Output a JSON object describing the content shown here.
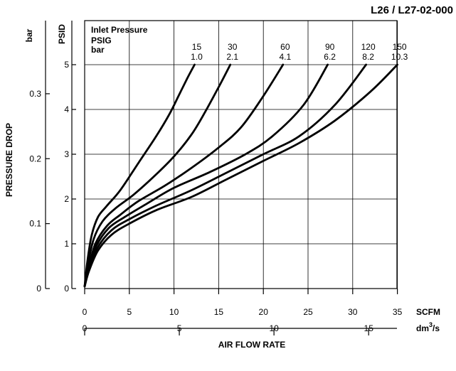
{
  "chart_data": {
    "type": "line",
    "title": "L26 / L27-02-000",
    "ylabel": "PRESSURE DROP",
    "xlabel": "AIR FLOW RATE",
    "y_units": {
      "psid": "PSID",
      "bar": "bar"
    },
    "x_units": {
      "scfm": "SCFM",
      "dm3s_base": "dm",
      "dm3s_exp": "3",
      "dm3s_tail": "/s"
    },
    "psid_ticks": [
      "0",
      "1",
      "2",
      "3",
      "4",
      "5"
    ],
    "bar_ticks": [
      "0",
      "0.1",
      "0.2",
      "0.3"
    ],
    "scfm_ticks": [
      "0",
      "5",
      "10",
      "15",
      "20",
      "25",
      "30",
      "35"
    ],
    "dm3s_ticks": [
      "0",
      "5",
      "10",
      "15"
    ],
    "xlim": [
      0,
      38
    ],
    "ylim": [
      0,
      5.3
    ],
    "grid": true,
    "legend": {
      "header": "Inlet Pressure",
      "row1": "PSIG",
      "row2": "bar"
    },
    "series": [
      {
        "name": "15 PSIG / 1.0 bar",
        "psig": "15",
        "bar": "1.0",
        "x": [
          0,
          0.3,
          0.8,
          1.5,
          2.5,
          4,
          6,
          8,
          9.5,
          10.5,
          11.5,
          12.3
        ],
        "y": [
          0.05,
          0.6,
          1.2,
          1.6,
          1.85,
          2.2,
          2.8,
          3.4,
          3.9,
          4.3,
          4.7,
          5.0
        ]
      },
      {
        "name": "30 PSIG / 2.1 bar",
        "psig": "30",
        "bar": "2.1",
        "x": [
          0,
          0.4,
          1,
          2,
          3.5,
          5.5,
          8,
          10,
          12,
          13.5,
          15,
          16.3
        ],
        "y": [
          0.05,
          0.55,
          1.1,
          1.5,
          1.8,
          2.1,
          2.55,
          2.95,
          3.45,
          3.95,
          4.5,
          5.0
        ]
      },
      {
        "name": "60 PSIG / 4.1 bar",
        "psig": "60",
        "bar": "4.1",
        "x": [
          0,
          0.5,
          1.2,
          2.5,
          4,
          6,
          9,
          12,
          15,
          17.5,
          20,
          22.2
        ],
        "y": [
          0.05,
          0.5,
          1.0,
          1.4,
          1.65,
          1.95,
          2.3,
          2.7,
          3.15,
          3.6,
          4.3,
          5.0
        ]
      },
      {
        "name": "90 PSIG / 6.2 bar",
        "psig": "90",
        "bar": "6.2",
        "x": [
          0,
          0.5,
          1.3,
          2.7,
          4.5,
          7,
          10,
          14,
          18,
          21,
          24.5,
          27.2
        ],
        "y": [
          0.05,
          0.5,
          0.95,
          1.35,
          1.6,
          1.9,
          2.25,
          2.6,
          3.0,
          3.4,
          4.1,
          5.0
        ]
      },
      {
        "name": "120 PSIG / 8.2 bar",
        "psig": "120",
        "bar": "8.2",
        "x": [
          0,
          0.5,
          1.4,
          3,
          5,
          8,
          12,
          16,
          20,
          24,
          28,
          31.5
        ],
        "y": [
          0.05,
          0.45,
          0.9,
          1.3,
          1.55,
          1.85,
          2.2,
          2.6,
          3.0,
          3.4,
          4.1,
          5.0
        ]
      },
      {
        "name": "150 PSIG / 10.3 bar",
        "psig": "150",
        "bar": "10.3",
        "x": [
          0,
          0.5,
          1.5,
          3,
          5,
          8,
          12,
          16,
          20,
          24,
          28,
          32,
          35
        ],
        "y": [
          0.05,
          0.4,
          0.85,
          1.2,
          1.45,
          1.75,
          2.05,
          2.45,
          2.85,
          3.25,
          3.75,
          4.4,
          5.0
        ]
      }
    ]
  }
}
